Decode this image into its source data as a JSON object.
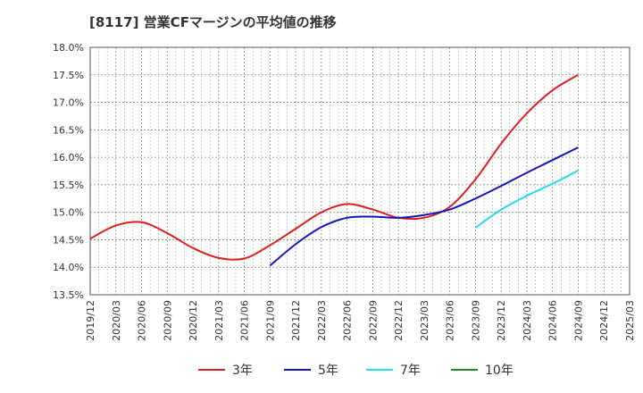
{
  "chart_data": {
    "type": "line",
    "title": "[8117]  営業CFマージンの平均値の推移",
    "ylim": [
      13.5,
      18.0
    ],
    "y_ticks": [
      "13.5%",
      "14.0%",
      "14.5%",
      "15.0%",
      "15.5%",
      "16.0%",
      "16.5%",
      "17.0%",
      "17.5%",
      "18.0%"
    ],
    "x_ticks": [
      "2019/12",
      "2020/03",
      "2020/06",
      "2020/09",
      "2020/12",
      "2021/03",
      "2021/06",
      "2021/09",
      "2021/12",
      "2022/03",
      "2022/06",
      "2022/09",
      "2022/12",
      "2023/03",
      "2023/06",
      "2023/09",
      "2023/12",
      "2024/03",
      "2024/06",
      "2024/09",
      "2024/12",
      "2025/03"
    ],
    "grid": true,
    "legend_position": "bottom",
    "series": [
      {
        "name": "3年",
        "color": "#dd1f1f",
        "points": [
          [
            "2019/12",
            14.52
          ],
          [
            "2020/03",
            14.76
          ],
          [
            "2020/06",
            14.82
          ],
          [
            "2020/09",
            14.62
          ],
          [
            "2020/12",
            14.35
          ],
          [
            "2021/03",
            14.17
          ],
          [
            "2021/06",
            14.16
          ],
          [
            "2021/09",
            14.4
          ],
          [
            "2021/12",
            14.7
          ],
          [
            "2022/03",
            15.0
          ],
          [
            "2022/06",
            15.15
          ],
          [
            "2022/09",
            15.05
          ],
          [
            "2022/12",
            14.9
          ],
          [
            "2023/03",
            14.9
          ],
          [
            "2023/06",
            15.1
          ],
          [
            "2023/09",
            15.6
          ],
          [
            "2023/12",
            16.25
          ],
          [
            "2024/03",
            16.8
          ],
          [
            "2024/06",
            17.22
          ],
          [
            "2024/09",
            17.5
          ]
        ]
      },
      {
        "name": "5年",
        "color": "#1515bb",
        "points": [
          [
            "2021/09",
            14.03
          ],
          [
            "2021/12",
            14.42
          ],
          [
            "2022/03",
            14.73
          ],
          [
            "2022/06",
            14.9
          ],
          [
            "2022/09",
            14.92
          ],
          [
            "2022/12",
            14.9
          ],
          [
            "2023/03",
            14.95
          ],
          [
            "2023/06",
            15.05
          ],
          [
            "2023/09",
            15.25
          ],
          [
            "2023/12",
            15.48
          ],
          [
            "2024/03",
            15.72
          ],
          [
            "2024/06",
            15.95
          ],
          [
            "2024/09",
            16.18
          ]
        ]
      },
      {
        "name": "7年",
        "color": "#22ddee",
        "points": [
          [
            "2023/09",
            14.72
          ],
          [
            "2023/12",
            15.05
          ],
          [
            "2024/03",
            15.3
          ],
          [
            "2024/06",
            15.52
          ],
          [
            "2024/09",
            15.76
          ]
        ]
      },
      {
        "name": "10年",
        "color": "#228822",
        "points": []
      }
    ]
  }
}
